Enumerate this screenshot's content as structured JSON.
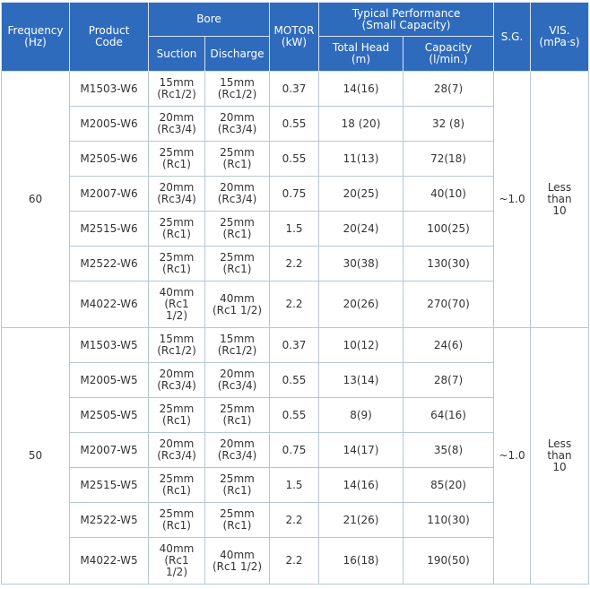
{
  "headers": {
    "frequency": "Frequency\n(Hz)",
    "product_code": "Product\nCode",
    "bore": "Bore",
    "suction": "Suction",
    "discharge": "Discharge",
    "motor": "MOTOR\n(kW)",
    "typical_performance": "Typical Performance\n(Small Capacity)",
    "total_head": "Total Head\n(m)",
    "capacity": "Capacity\n(l/min.)",
    "sg": "S.G.",
    "vis": "VIS.\n(mPa·s)"
  },
  "groups": [
    {
      "frequency": "60",
      "sg": "~1.0",
      "vis": "Less\nthan\n10",
      "rows": [
        {
          "code": "M1503-W6",
          "suction": "15mm\n(Rc1/2)",
          "discharge": "15mm\n(Rc1/2)",
          "motor": "0.37",
          "head": "14(16)",
          "capacity": "28(7)"
        },
        {
          "code": "M2005-W6",
          "suction": "20mm\n(Rc3/4)",
          "discharge": "20mm\n(Rc3/4)",
          "motor": "0.55",
          "head": "18 (20)",
          "capacity": "32 (8)"
        },
        {
          "code": "M2505-W6",
          "suction": "25mm\n(Rc1)",
          "discharge": "25mm\n(Rc1)",
          "motor": "0.55",
          "head": "11(13)",
          "capacity": "72(18)"
        },
        {
          "code": "M2007-W6",
          "suction": "20mm\n(Rc3/4)",
          "discharge": "20mm\n(Rc3/4)",
          "motor": "0.75",
          "head": "20(25)",
          "capacity": "40(10)"
        },
        {
          "code": "M2515-W6",
          "suction": "25mm\n(Rc1)",
          "discharge": "25mm\n(Rc1)",
          "motor": "1.5",
          "head": "20(24)",
          "capacity": "100(25)"
        },
        {
          "code": "M2522-W6",
          "suction": "25mm\n(Rc1)",
          "discharge": "25mm\n(Rc1)",
          "motor": "2.2",
          "head": "30(38)",
          "capacity": "130(30)"
        },
        {
          "code": "M4022-W6",
          "suction": "40mm\n(Rc1\n1/2)",
          "discharge": "40mm\n(Rc1 1/2)",
          "motor": "2.2",
          "head": "20(26)",
          "capacity": "270(70)"
        }
      ]
    },
    {
      "frequency": "50",
      "sg": "~1.0",
      "vis": "Less\nthan\n10",
      "rows": [
        {
          "code": "M1503-W5",
          "suction": "15mm\n(Rc1/2)",
          "discharge": "15mm\n(Rc1/2)",
          "motor": "0.37",
          "head": "10(12)",
          "capacity": "24(6)"
        },
        {
          "code": "M2005-W5",
          "suction": "20mm\n(Rc3/4)",
          "discharge": "20mm\n(Rc3/4)",
          "motor": "0.55",
          "head": "13(14)",
          "capacity": "28(7)"
        },
        {
          "code": "M2505-W5",
          "suction": "25mm\n(Rc1)",
          "discharge": "25mm\n(Rc1)",
          "motor": "0.55",
          "head": "8(9)",
          "capacity": "64(16)"
        },
        {
          "code": "M2007-W5",
          "suction": "20mm\n(Rc3/4)",
          "discharge": "20mm\n(Rc3/4)",
          "motor": "0.75",
          "head": "14(17)",
          "capacity": "35(8)"
        },
        {
          "code": "M2515-W5",
          "suction": "25mm\n(Rc1)",
          "discharge": "25mm\n(Rc1)",
          "motor": "1.5",
          "head": "14(16)",
          "capacity": "85(20)"
        },
        {
          "code": "M2522-W5",
          "suction": "25mm\n(Rc1)",
          "discharge": "25mm\n(Rc1)",
          "motor": "2.2",
          "head": "21(26)",
          "capacity": "110(30)"
        },
        {
          "code": "M4022-W5",
          "suction": "40mm\n(Rc1\n1/2)",
          "discharge": "40mm\n(Rc1 1/2)",
          "motor": "2.2",
          "head": "16(18)",
          "capacity": "190(50)"
        }
      ]
    }
  ]
}
